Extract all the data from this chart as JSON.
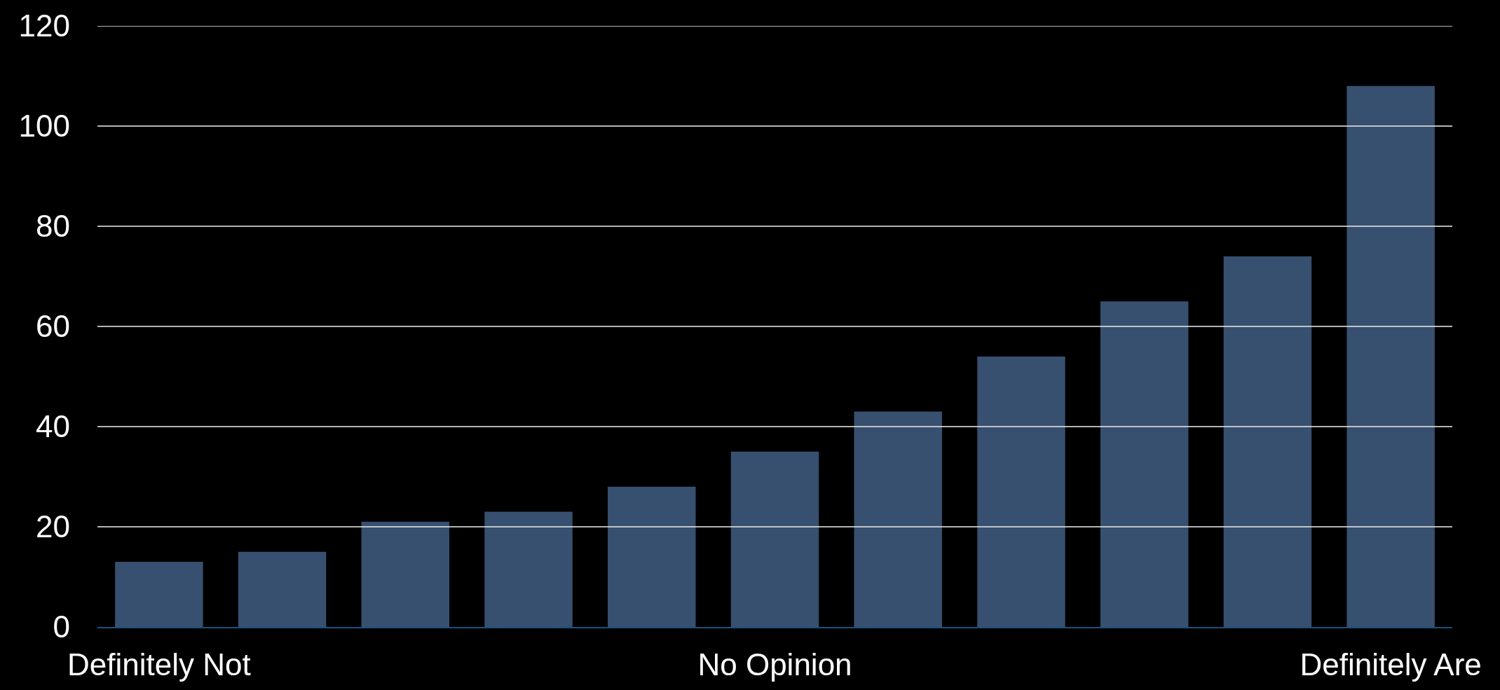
{
  "chart_data": {
    "type": "bar",
    "categories": [
      "Definitely Not",
      null,
      null,
      null,
      null,
      "No Opinion",
      null,
      null,
      null,
      null,
      "Definitely Are"
    ],
    "values": [
      13,
      15,
      21,
      23,
      28,
      35,
      43,
      54,
      65,
      74,
      108
    ],
    "color": "#38506f",
    "ylim": [
      0,
      120
    ],
    "yticks": [
      0,
      20,
      40,
      60,
      80,
      100,
      120
    ],
    "grid": "y"
  }
}
